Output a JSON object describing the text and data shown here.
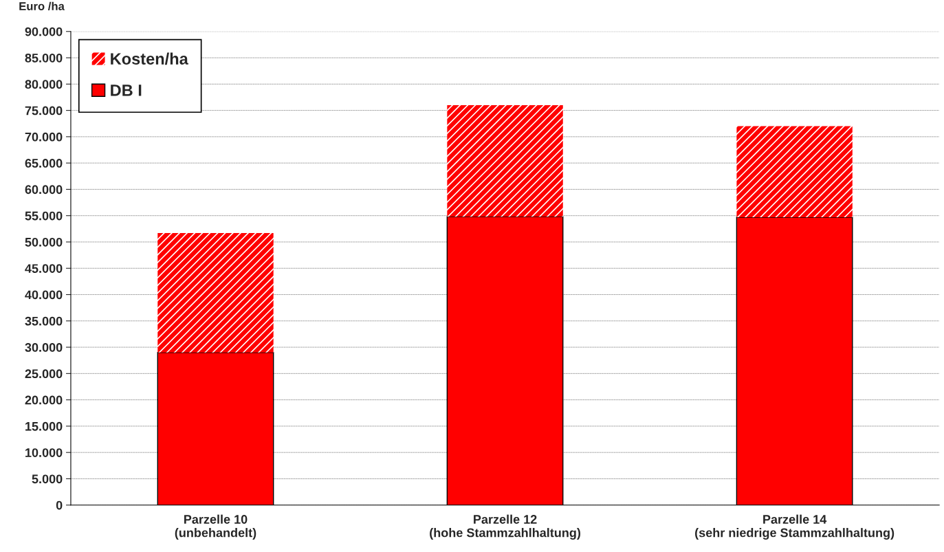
{
  "chart_data": {
    "type": "bar",
    "ylabel": "Euro /ha",
    "stacked": true,
    "categories": [
      "Parzelle 10\n(unbehandelt)",
      "Parzelle 12\n(hohe Stammzahlhaltung)",
      "Parzelle 14\n(sehr niedrige Stammzahlhaltung)"
    ],
    "series": [
      {
        "name": "DB I",
        "color": "#ff0000",
        "values": [
          29000,
          54800,
          54700
        ]
      },
      {
        "name": "Kosten/ha",
        "color": "#ff0000",
        "values": [
          22700,
          21200,
          17300
        ]
      }
    ],
    "ylim": [
      0,
      90000
    ],
    "yticks": [
      0,
      {
        "value": 5000,
        "label": "5.000"
      },
      {
        "value": 10000,
        "label": "10.000"
      },
      {
        "value": 15000,
        "label": "15.000"
      },
      {
        "value": 20000,
        "label": "20.000"
      },
      {
        "value": 25000,
        "label": "25.000"
      },
      {
        "value": 30000,
        "label": "30.000"
      },
      {
        "value": 35000,
        "label": "35.000"
      },
      {
        "value": 40000,
        "label": "40.000"
      },
      {
        "value": 45000,
        "label": "45.000"
      },
      {
        "value": 50000,
        "label": "50.000"
      },
      {
        "value": 55000,
        "label": "55.000"
      },
      {
        "value": 60000,
        "label": "60.000"
      },
      {
        "value": 65000,
        "label": "65.000"
      },
      {
        "value": 70000,
        "label": "70.000"
      },
      {
        "value": 75000,
        "label": "75.000"
      },
      {
        "value": 80000,
        "label": "80.000"
      },
      {
        "value": 85000,
        "label": "85.000"
      },
      {
        "value": 90000,
        "label": "90.000"
      }
    ],
    "grid": "y",
    "legend": "top left"
  }
}
